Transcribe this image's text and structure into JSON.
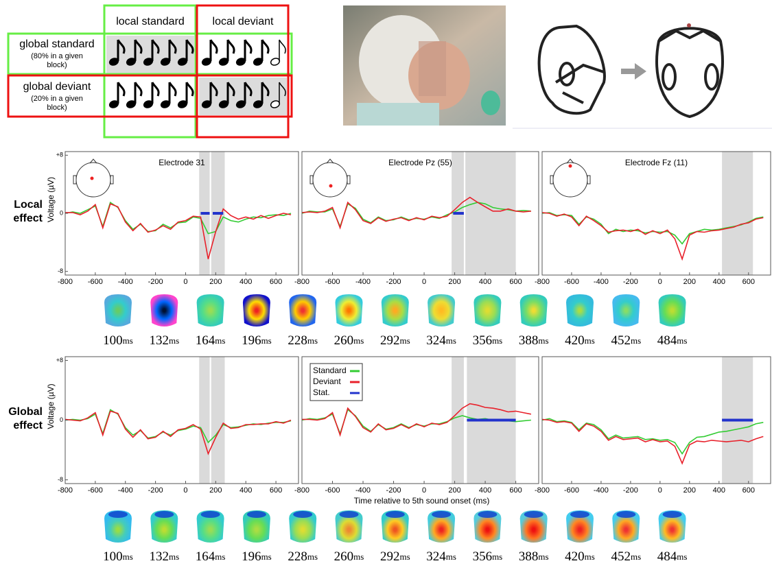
{
  "design": {
    "columns": [
      "local standard",
      "local deviant"
    ],
    "rows": [
      {
        "label": "global standard",
        "note": "(80% in a given block)"
      },
      {
        "label": "global deviant",
        "note": "(20% in a given block)"
      }
    ]
  },
  "chart_data": [
    {
      "type": "line",
      "title": "Electrode 31",
      "row_label": "Local effect",
      "ylabel": "Voltage (µV)",
      "x": [
        -800,
        -750,
        -700,
        -650,
        -600,
        -550,
        -500,
        -450,
        -400,
        -350,
        -300,
        -250,
        -200,
        -150,
        -100,
        -50,
        0,
        50,
        100,
        150,
        200,
        250,
        300,
        350,
        400,
        450,
        500,
        550,
        600,
        650,
        700
      ],
      "series": [
        {
          "color": "#33cc33",
          "values": [
            0,
            0.2,
            0,
            0.5,
            1,
            -1.8,
            1.5,
            0.8,
            -1,
            -2.2,
            -1.5,
            -2.5,
            -2.4,
            -1.5,
            -2,
            -1.3,
            -1.2,
            -0.5,
            -0.7,
            -2.8,
            -2.5,
            -0.5,
            -1,
            -1.2,
            -0.8,
            -0.5,
            -0.6,
            -0.3,
            -0.2,
            -0.3,
            0
          ]
        },
        {
          "color": "#e8202a",
          "values": [
            0.1,
            0.1,
            -0.2,
            0.3,
            1.2,
            -2,
            1.3,
            0.9,
            -1.2,
            -2.4,
            -1.4,
            -2.6,
            -2.3,
            -1.7,
            -2.2,
            -1.2,
            -1,
            -0.4,
            -0.5,
            -6.3,
            -2.5,
            0.6,
            -0.3,
            -0.8,
            -0.5,
            -0.8,
            -0.3,
            -0.7,
            -0.3,
            0,
            -0.2
          ]
        }
      ],
      "shaded": [
        [
          90,
          160
        ],
        [
          170,
          260
        ]
      ],
      "stat": {
        "color": "#2233cc",
        "intervals": [
          [
            100,
            160
          ],
          [
            180,
            250
          ]
        ]
      },
      "xlim": [
        -800,
        750
      ],
      "ylim": [
        -8.5,
        8.5
      ],
      "xticks": [
        -800,
        -600,
        -400,
        -200,
        0,
        200,
        400,
        600
      ],
      "yticks": [
        {
          "value": 8,
          "label": "+8"
        },
        0,
        -8
      ]
    },
    {
      "type": "line",
      "title": "Electrode Pz (55)",
      "x": [
        -800,
        -750,
        -700,
        -650,
        -600,
        -550,
        -500,
        -450,
        -400,
        -350,
        -300,
        -250,
        -200,
        -150,
        -100,
        -50,
        0,
        50,
        100,
        150,
        200,
        250,
        300,
        350,
        400,
        450,
        500,
        550,
        600,
        650,
        700
      ],
      "series": [
        {
          "color": "#33cc33",
          "values": [
            0,
            0.3,
            0.2,
            0.2,
            0.6,
            -1.8,
            1.3,
            0.7,
            -0.8,
            -1.3,
            -0.5,
            -1,
            -0.9,
            -0.5,
            -0.9,
            -0.7,
            -0.8,
            -0.5,
            -0.7,
            -0.2,
            0.2,
            0.8,
            1.2,
            1.5,
            1.3,
            0.8,
            0.6,
            0.5,
            0.3,
            0.4,
            0.3
          ]
        },
        {
          "color": "#e8202a",
          "values": [
            0.1,
            0.2,
            0.1,
            0.3,
            0.8,
            -2,
            1.5,
            0.5,
            -1,
            -1.4,
            -0.6,
            -1.1,
            -0.8,
            -0.6,
            -1,
            -0.6,
            -0.9,
            -0.4,
            -0.6,
            -0.4,
            0.5,
            1.5,
            2.2,
            1.5,
            0.9,
            0.3,
            0.3,
            0.6,
            0.3,
            0.2,
            0.3
          ]
        }
      ],
      "shaded": [
        [
          180,
          260
        ],
        [
          270,
          600
        ]
      ],
      "stat": {
        "color": "#2233cc",
        "intervals": [
          [
            190,
            260
          ]
        ]
      },
      "xlim": [
        -800,
        750
      ],
      "ylim": [
        -8.5,
        8.5
      ],
      "xticks": [
        -800,
        -600,
        -400,
        -200,
        0,
        200,
        400,
        600
      ]
    },
    {
      "type": "line",
      "title": "Electrode Fz (11)",
      "x": [
        -800,
        -750,
        -700,
        -650,
        -600,
        -550,
        -500,
        -450,
        -400,
        -350,
        -300,
        -250,
        -200,
        -150,
        -100,
        -50,
        0,
        50,
        100,
        150,
        200,
        250,
        300,
        350,
        400,
        450,
        500,
        550,
        600,
        650,
        700
      ],
      "series": [
        {
          "color": "#33cc33",
          "values": [
            0,
            0.1,
            -0.3,
            -0.2,
            -0.3,
            -1.5,
            -0.5,
            -0.8,
            -1.5,
            -2.8,
            -2.2,
            -2.5,
            -2.3,
            -2.4,
            -2.7,
            -2.5,
            -2.6,
            -2.5,
            -3,
            -4.2,
            -2.8,
            -2.5,
            -2.2,
            -2.3,
            -2.2,
            -2,
            -1.8,
            -1.6,
            -1.2,
            -0.7,
            -0.5
          ]
        },
        {
          "color": "#e8202a",
          "values": [
            0.1,
            0,
            -0.4,
            -0.1,
            -0.5,
            -1.7,
            -0.4,
            -1,
            -1.7,
            -2.6,
            -2.4,
            -2.3,
            -2.5,
            -2.2,
            -2.9,
            -2.4,
            -2.8,
            -2.3,
            -3.5,
            -6.3,
            -3,
            -2.5,
            -2.6,
            -2.4,
            -2.3,
            -2.1,
            -1.9,
            -1.5,
            -1.3,
            -0.8,
            -0.6
          ]
        }
      ],
      "shaded": [
        [
          420,
          630
        ]
      ],
      "xlim": [
        -800,
        750
      ],
      "ylim": [
        -8.5,
        8.5
      ],
      "xticks": [
        -800,
        -600,
        -400,
        -200,
        0,
        200,
        400,
        600
      ]
    },
    {
      "type": "line",
      "row_label": "Global effect",
      "ylabel": "Voltage (µV)",
      "x": [
        -800,
        -750,
        -700,
        -650,
        -600,
        -550,
        -500,
        -450,
        -400,
        -350,
        -300,
        -250,
        -200,
        -150,
        -100,
        -50,
        0,
        50,
        100,
        150,
        200,
        250,
        300,
        350,
        400,
        450,
        500,
        550,
        600,
        650,
        700
      ],
      "series": [
        {
          "color": "#33cc33",
          "values": [
            0,
            0.1,
            0,
            0.2,
            0.8,
            -1.8,
            1.4,
            0.8,
            -1,
            -2,
            -1.4,
            -2.4,
            -2.2,
            -1.6,
            -2,
            -1.4,
            -1.2,
            -0.8,
            -1,
            -3,
            -2,
            -0.6,
            -1,
            -0.9,
            -0.7,
            -0.5,
            -0.6,
            -0.4,
            -0.3,
            -0.3,
            -0.1
          ]
        },
        {
          "color": "#e8202a",
          "values": [
            0.1,
            0,
            -0.1,
            0.3,
            1,
            -2,
            1.2,
            0.9,
            -1.2,
            -2.3,
            -1.3,
            -2.5,
            -2.3,
            -1.5,
            -2.2,
            -1.3,
            -1.1,
            -0.6,
            -1.2,
            -4.5,
            -2.3,
            -0.4,
            -1.1,
            -1,
            -0.6,
            -0.6,
            -0.5,
            -0.5,
            -0.2,
            -0.4,
            0
          ]
        }
      ],
      "shaded": [
        [
          90,
          160
        ],
        [
          170,
          260
        ]
      ],
      "xlim": [
        -800,
        750
      ],
      "ylim": [
        -8.5,
        8.5
      ],
      "xticks": [
        -800,
        -600,
        -400,
        -200,
        0,
        200,
        400,
        600
      ],
      "yticks": [
        {
          "value": 8,
          "label": "+8"
        },
        0,
        -8
      ]
    },
    {
      "type": "line",
      "xlabel": "Time relative to 5th sound onset (ms)",
      "legend": "upper left",
      "x": [
        -800,
        -750,
        -700,
        -650,
        -600,
        -550,
        -500,
        -450,
        -400,
        -350,
        -300,
        -250,
        -200,
        -150,
        -100,
        -50,
        0,
        50,
        100,
        150,
        200,
        250,
        300,
        350,
        400,
        450,
        500,
        550,
        600,
        650,
        700
      ],
      "series": [
        {
          "name": "Standard",
          "color": "#33cc33",
          "values": [
            0,
            0.2,
            0.1,
            0.3,
            0.8,
            -1.8,
            1.4,
            0.6,
            -0.8,
            -1.5,
            -0.6,
            -1.2,
            -1,
            -0.5,
            -1,
            -0.6,
            -0.8,
            -0.5,
            -0.5,
            -0.2,
            0.3,
            0.6,
            0.3,
            0.1,
            0.2,
            0,
            0.1,
            -0.1,
            -0.2,
            -0.1,
            0
          ]
        },
        {
          "name": "Deviant",
          "color": "#e8202a",
          "values": [
            0.1,
            0.1,
            0,
            0.2,
            1,
            -2,
            1.6,
            0.5,
            -1,
            -1.6,
            -0.5,
            -1.3,
            -1.1,
            -0.6,
            -1.1,
            -0.5,
            -0.9,
            -0.4,
            -0.6,
            -0.3,
            0.6,
            1.6,
            2.2,
            2,
            1.7,
            1.6,
            1.4,
            1.1,
            1.2,
            1,
            0.8
          ]
        }
      ],
      "shaded": [
        [
          180,
          260
        ],
        [
          280,
          600
        ]
      ],
      "stat": {
        "name": "Stat.",
        "color": "#2233cc",
        "intervals": [
          [
            280,
            600
          ]
        ]
      },
      "xlim": [
        -800,
        750
      ],
      "ylim": [
        -8.5,
        8.5
      ],
      "xticks": [
        -800,
        -600,
        -400,
        -200,
        0,
        200,
        400,
        600
      ]
    },
    {
      "type": "line",
      "x": [
        -800,
        -750,
        -700,
        -650,
        -600,
        -550,
        -500,
        -450,
        -400,
        -350,
        -300,
        -250,
        -200,
        -150,
        -100,
        -50,
        0,
        50,
        100,
        150,
        200,
        250,
        300,
        350,
        400,
        450,
        500,
        550,
        600,
        650,
        700
      ],
      "series": [
        {
          "color": "#33cc33",
          "values": [
            0,
            0.2,
            -0.2,
            -0.1,
            -0.3,
            -1.3,
            -0.4,
            -0.6,
            -1.3,
            -2.5,
            -2,
            -2.4,
            -2.3,
            -2.2,
            -2.6,
            -2.5,
            -2.7,
            -2.6,
            -3,
            -4.5,
            -3,
            -2.3,
            -2.2,
            -1.9,
            -1.6,
            -1.5,
            -1.3,
            -1.1,
            -0.9,
            -0.5,
            -0.3
          ]
        },
        {
          "color": "#e8202a",
          "values": [
            0.1,
            0,
            -0.3,
            -0.2,
            -0.4,
            -1.5,
            -0.5,
            -0.8,
            -1.5,
            -2.7,
            -2.2,
            -2.6,
            -2.5,
            -2.4,
            -2.9,
            -2.6,
            -2.9,
            -2.8,
            -3.5,
            -5.8,
            -3.3,
            -2.8,
            -2.9,
            -2.7,
            -2.8,
            -2.9,
            -2.8,
            -2.7,
            -2.9,
            -2.5,
            -2.2
          ]
        }
      ],
      "shaded": [
        [
          420,
          630
        ]
      ],
      "stat": {
        "color": "#2233cc",
        "intervals": [
          [
            420,
            630
          ]
        ]
      },
      "xlim": [
        -800,
        750
      ],
      "ylim": [
        -8.5,
        8.5
      ],
      "xticks": [
        -800,
        -600,
        -400,
        -200,
        0,
        200,
        400,
        600
      ]
    }
  ],
  "topomaps": {
    "unit": "ms",
    "rows": [
      {
        "times": [
          100,
          132,
          164,
          196,
          228,
          260,
          292,
          324,
          356,
          388,
          420,
          452,
          484
        ]
      },
      {
        "times": [
          100,
          132,
          164,
          196,
          228,
          260,
          292,
          324,
          356,
          388,
          420,
          452,
          484
        ]
      }
    ]
  }
}
